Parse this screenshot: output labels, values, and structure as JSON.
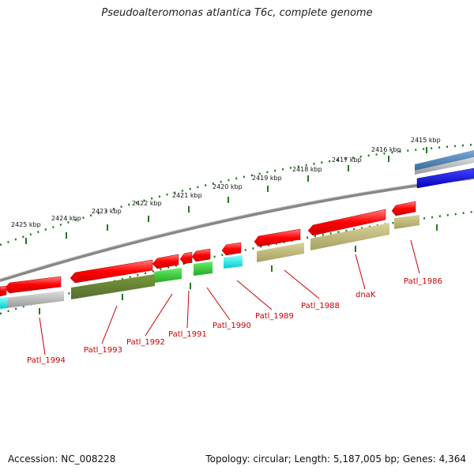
{
  "header": {
    "title": "Pseudoalteromonas atlantica T6c, complete genome"
  },
  "footer": {
    "accession": "Accession: NC_008228",
    "summary": "Topology: circular; Length: 5,187,005 bp; Genes: 4,364"
  },
  "scale": {
    "labels": [
      "2415 kbp",
      "2416 kbp",
      "2417 kbp",
      "2418 kbp",
      "2419 kbp",
      "2420 kbp",
      "2421 kbp",
      "2422 kbp",
      "2423 kbp",
      "2424 kbp",
      "2425 kbp"
    ]
  },
  "gene_labels": [
    "Patl_1986",
    "dnaK",
    "Patl_1988",
    "Patl_1989",
    "Patl_1990",
    "Patl_1991",
    "Patl_1992",
    "Patl_1993",
    "Patl_1994"
  ],
  "colors": {
    "cds": "#ff0000",
    "olive": "#6b8e23",
    "green": "#33cc33",
    "khaki": "#bdb76b",
    "cyan": "#00ffff",
    "gray": "#b0b0b0",
    "blue": "#0000ee",
    "steel": "#4682b4",
    "backbone": "#808080",
    "ticks": "#1e7a1e",
    "label": "#cc0000"
  }
}
